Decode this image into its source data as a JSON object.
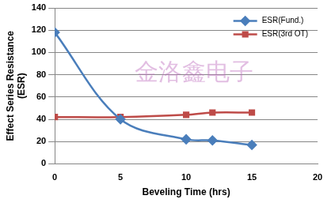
{
  "chart_data": {
    "type": "line",
    "x_label": "Beveling Time (hrs)",
    "y_label": [
      "Effect Series Resistance",
      "(ESR)"
    ],
    "annotations": [
      "金洛鑫电子"
    ],
    "x": [
      0,
      5,
      10,
      12,
      15
    ],
    "series": [
      {
        "name": "ESR(Fund.)",
        "color": "#4a7ebb",
        "marker": "diamond",
        "values": [
          118,
          40,
          22,
          21,
          17
        ]
      },
      {
        "name": "ESR(3rd OT)",
        "color": "#be4b48",
        "marker": "square",
        "values": [
          42,
          42,
          44,
          46,
          46
        ]
      }
    ],
    "xlim": [
      0,
      20
    ],
    "xticks": [
      0,
      5,
      10,
      15,
      20
    ],
    "ylim": [
      0,
      140
    ],
    "yticks": [
      0,
      20,
      40,
      60,
      80,
      100,
      120,
      140
    ],
    "grid": true,
    "legend": "upper right"
  }
}
